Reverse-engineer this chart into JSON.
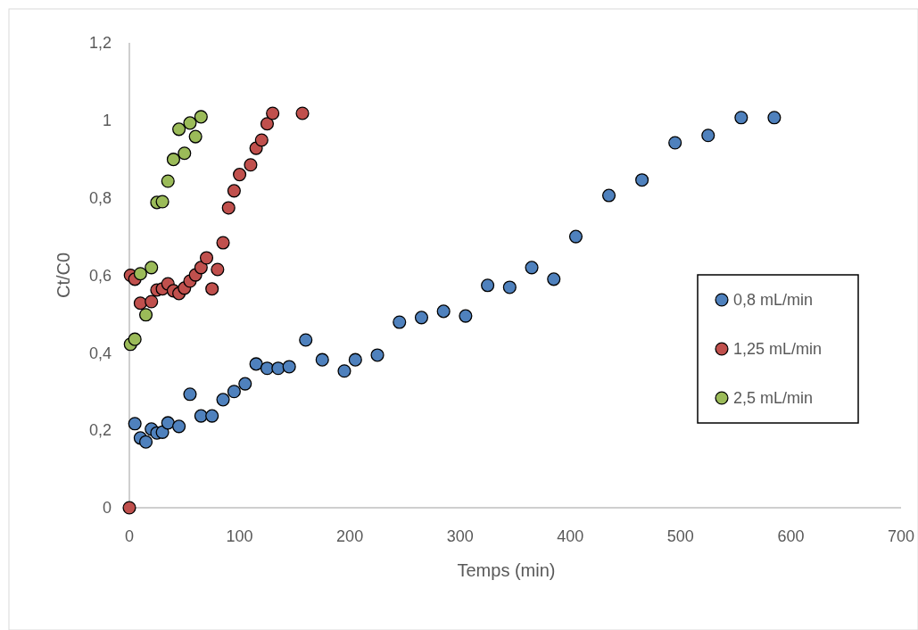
{
  "chart_data": {
    "type": "scatter",
    "xlabel": "Temps (min)",
    "ylabel": "Ct/C0",
    "xlim": [
      0,
      700
    ],
    "xticks": [
      0,
      100,
      200,
      300,
      400,
      500,
      600,
      700
    ],
    "ylim": [
      0,
      1.2
    ],
    "yticks": [
      0,
      {
        "value": 0.2,
        "label": "0,2"
      },
      {
        "value": 0.4,
        "label": "0,4"
      },
      {
        "value": 0.6,
        "label": "0,6"
      },
      {
        "value": 0.8,
        "label": "0,8"
      },
      1,
      {
        "value": 1.2,
        "label": "1,2"
      }
    ],
    "grid": false,
    "legend": "right",
    "marker": "circle",
    "series": [
      {
        "name": "0,8 mL/min",
        "color": "#4f81bd",
        "x": [
          5,
          10,
          15,
          20,
          25,
          30,
          35,
          45,
          55,
          65,
          75,
          85,
          95,
          105,
          115,
          125,
          135,
          145,
          160,
          175,
          195,
          205,
          225,
          245,
          265,
          285,
          305,
          325,
          345,
          365,
          385,
          405,
          435,
          465,
          495,
          525,
          555,
          585
        ],
        "values": [
          0.217,
          0.18,
          0.17,
          0.203,
          0.193,
          0.195,
          0.219,
          0.21,
          0.293,
          0.237,
          0.237,
          0.279,
          0.3,
          0.32,
          0.371,
          0.36,
          0.36,
          0.364,
          0.433,
          0.382,
          0.353,
          0.382,
          0.394,
          0.479,
          0.491,
          0.507,
          0.495,
          0.574,
          0.569,
          0.62,
          0.59,
          0.7,
          0.806,
          0.846,
          0.942,
          0.961,
          1.007,
          1.007
        ]
      },
      {
        "name": "1,25 mL/min",
        "color": "#c0504d",
        "x": [
          0,
          1,
          5,
          10,
          20,
          25,
          30,
          35,
          40,
          45,
          50,
          55,
          60,
          65,
          70,
          75,
          80,
          85,
          90,
          95,
          100,
          110,
          115,
          120,
          125,
          130,
          157
        ],
        "values": [
          0,
          0.6,
          0.59,
          0.528,
          0.532,
          0.562,
          0.565,
          0.578,
          0.56,
          0.553,
          0.567,
          0.585,
          0.601,
          0.62,
          0.645,
          0.565,
          0.615,
          0.684,
          0.774,
          0.818,
          0.86,
          0.885,
          0.928,
          0.949,
          0.991,
          1.018,
          1.018
        ]
      },
      {
        "name": "2,5 mL/min",
        "color": "#9bbb59",
        "x": [
          1,
          5,
          10,
          15,
          20,
          25,
          30,
          35,
          40,
          45,
          50,
          55,
          60,
          65
        ],
        "values": [
          0.422,
          0.435,
          0.604,
          0.498,
          0.62,
          0.788,
          0.79,
          0.843,
          0.899,
          0.977,
          0.915,
          0.993,
          0.958,
          1.009
        ]
      }
    ]
  }
}
